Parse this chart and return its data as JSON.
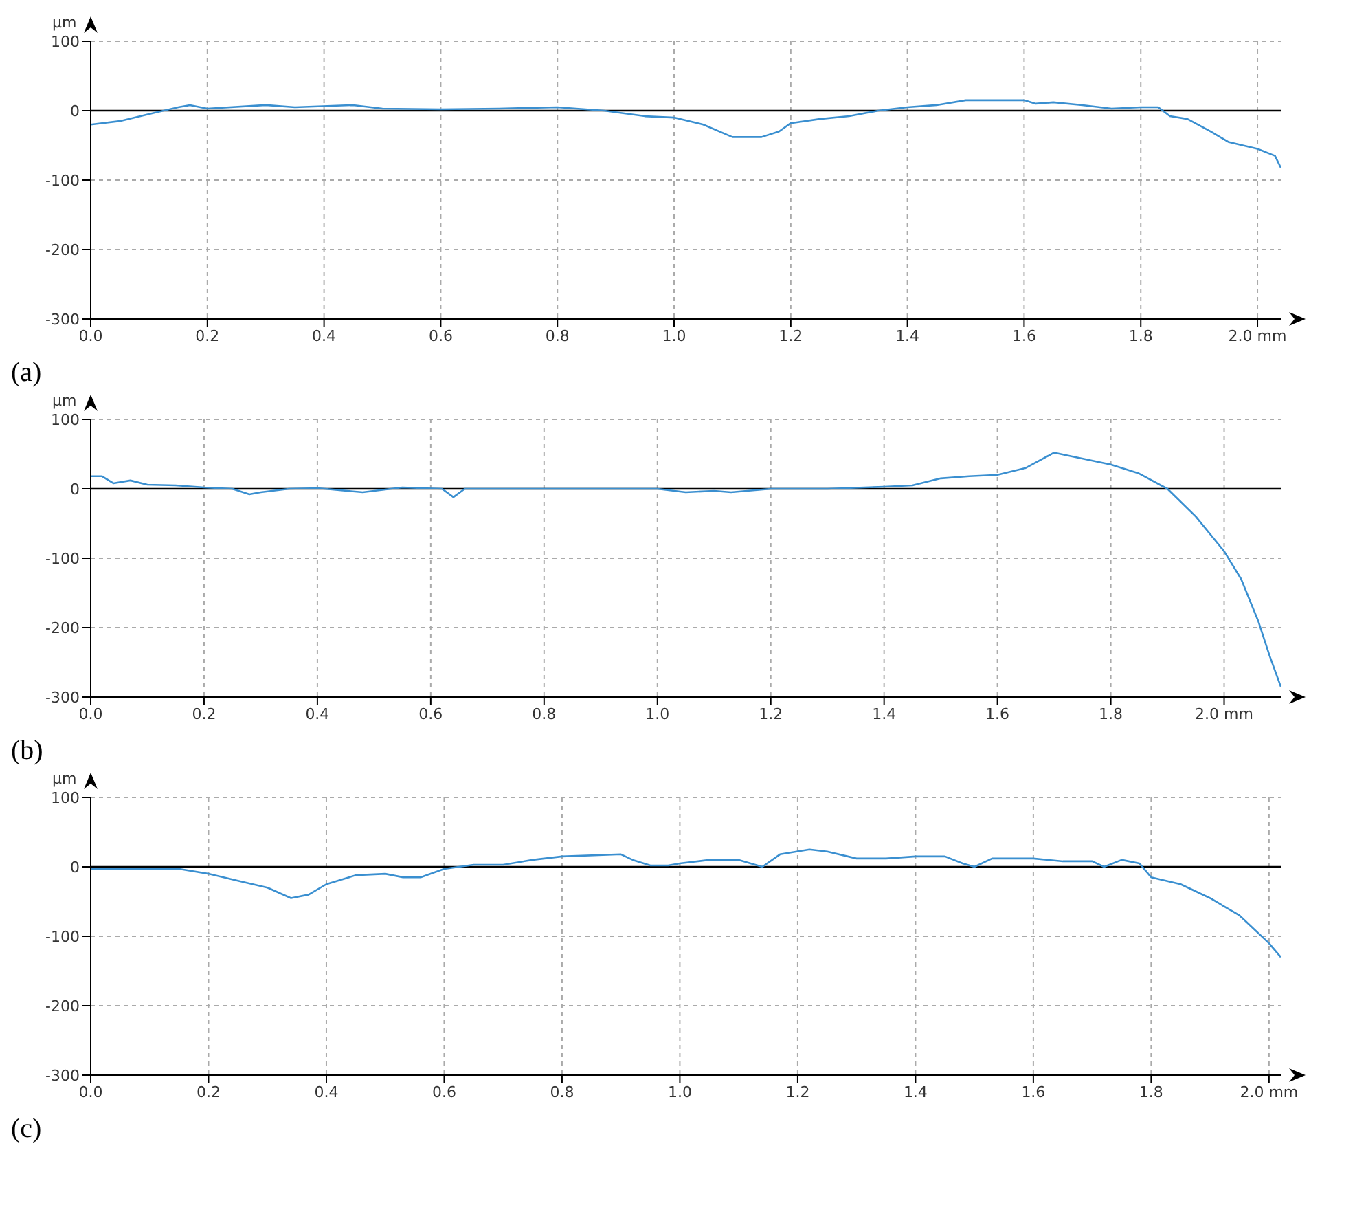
{
  "chart_data": [
    {
      "type": "line",
      "ylabel": "µm",
      "annotations": [
        "(a)"
      ],
      "xlim": [
        0,
        2.04
      ],
      "ylim": [
        -300,
        100
      ],
      "xticks": [
        {
          "value": 0,
          "label": "0.0"
        },
        {
          "value": 0.2,
          "label": "0.2"
        },
        {
          "value": 0.4,
          "label": "0.4"
        },
        {
          "value": 0.6,
          "label": "0.6"
        },
        {
          "value": 0.8,
          "label": "0.8"
        },
        {
          "value": 1,
          "label": "1.0"
        },
        {
          "value": 1.2,
          "label": "1.2"
        },
        {
          "value": 1.4,
          "label": "1.4"
        },
        {
          "value": 1.6,
          "label": "1.6"
        },
        {
          "value": 1.8,
          "label": "1.8"
        },
        {
          "value": 2,
          "label": "2.0 mm"
        }
      ],
      "yticks": [
        100,
        0,
        -100,
        -200,
        -300
      ],
      "grid": true,
      "ref_lines": [
        {
          "axis": "y",
          "value": 0,
          "color": "#000000"
        }
      ],
      "series": [
        {
          "color": "#3a8fd0",
          "x": [
            0,
            0.05,
            0.1,
            0.15,
            0.17,
            0.2,
            0.3,
            0.35,
            0.45,
            0.5,
            0.6,
            0.7,
            0.8,
            0.88,
            0.95,
            1.0,
            1.05,
            1.1,
            1.15,
            1.18,
            1.2,
            1.25,
            1.3,
            1.35,
            1.4,
            1.45,
            1.5,
            1.6,
            1.62,
            1.65,
            1.7,
            1.75,
            1.8,
            1.83,
            1.85,
            1.88,
            1.92,
            1.95,
            2.0,
            2.03,
            2.04
          ],
          "values": [
            -20,
            -15,
            -5,
            5,
            8,
            3,
            8,
            5,
            8,
            3,
            2,
            3,
            5,
            0,
            -8,
            -10,
            -20,
            -38,
            -38,
            -30,
            -18,
            -12,
            -8,
            0,
            5,
            8,
            15,
            15,
            10,
            12,
            8,
            3,
            5,
            5,
            -8,
            -12,
            -30,
            -45,
            -55,
            -65,
            -82
          ]
        }
      ]
    },
    {
      "type": "line",
      "ylabel": "µm",
      "annotations": [
        "(b)"
      ],
      "xlim": [
        0,
        2.1
      ],
      "ylim": [
        -300,
        100
      ],
      "xticks": [
        {
          "value": 0,
          "label": "0.0"
        },
        {
          "value": 0.2,
          "label": "0.2"
        },
        {
          "value": 0.4,
          "label": "0.4"
        },
        {
          "value": 0.6,
          "label": "0.6"
        },
        {
          "value": 0.8,
          "label": "0.8"
        },
        {
          "value": 1,
          "label": "1.0"
        },
        {
          "value": 1.2,
          "label": "1.2"
        },
        {
          "value": 1.4,
          "label": "1.4"
        },
        {
          "value": 1.6,
          "label": "1.6"
        },
        {
          "value": 1.8,
          "label": "1.8"
        },
        {
          "value": 2,
          "label": "2.0 mm"
        }
      ],
      "yticks": [
        100,
        0,
        -100,
        -200,
        -300
      ],
      "grid": true,
      "ref_lines": [
        {
          "axis": "y",
          "value": 0,
          "color": "#000000"
        }
      ],
      "series": [
        {
          "color": "#3a8fd0",
          "x": [
            0,
            0.02,
            0.04,
            0.07,
            0.1,
            0.15,
            0.2,
            0.25,
            0.28,
            0.3,
            0.35,
            0.4,
            0.48,
            0.55,
            0.62,
            0.64,
            0.66,
            0.8,
            1.0,
            1.05,
            1.1,
            1.13,
            1.2,
            1.3,
            1.4,
            1.45,
            1.5,
            1.55,
            1.6,
            1.65,
            1.7,
            1.8,
            1.85,
            1.9,
            1.95,
            2.0,
            2.03,
            2.06,
            2.08,
            2.1
          ],
          "values": [
            18,
            18,
            8,
            12,
            6,
            5,
            2,
            0,
            -8,
            -5,
            0,
            1,
            -5,
            2,
            0,
            -12,
            0,
            0,
            0,
            -5,
            -3,
            -5,
            0,
            0,
            3,
            5,
            15,
            18,
            20,
            30,
            52,
            35,
            22,
            0,
            -40,
            -90,
            -130,
            -190,
            -240,
            -285
          ]
        }
      ]
    },
    {
      "type": "line",
      "ylabel": "µm",
      "annotations": [
        "(c)"
      ],
      "xlim": [
        0,
        2.02
      ],
      "ylim": [
        -300,
        100
      ],
      "xticks": [
        {
          "value": 0,
          "label": "0.0"
        },
        {
          "value": 0.2,
          "label": "0.2"
        },
        {
          "value": 0.4,
          "label": "0.4"
        },
        {
          "value": 0.6,
          "label": "0.6"
        },
        {
          "value": 0.8,
          "label": "0.8"
        },
        {
          "value": 1,
          "label": "1.0"
        },
        {
          "value": 1.2,
          "label": "1.2"
        },
        {
          "value": 1.4,
          "label": "1.4"
        },
        {
          "value": 1.6,
          "label": "1.6"
        },
        {
          "value": 1.8,
          "label": "1.8"
        },
        {
          "value": 2,
          "label": "2.0 mm"
        }
      ],
      "yticks": [
        100,
        0,
        -100,
        -200,
        -300
      ],
      "grid": true,
      "ref_lines": [
        {
          "axis": "y",
          "value": 0,
          "color": "#000000"
        }
      ],
      "series": [
        {
          "color": "#3a8fd0",
          "x": [
            0,
            0.05,
            0.15,
            0.2,
            0.25,
            0.3,
            0.34,
            0.37,
            0.4,
            0.45,
            0.5,
            0.53,
            0.56,
            0.6,
            0.65,
            0.7,
            0.75,
            0.8,
            0.9,
            0.92,
            0.95,
            0.98,
            1.0,
            1.05,
            1.1,
            1.14,
            1.17,
            1.22,
            1.25,
            1.3,
            1.35,
            1.4,
            1.45,
            1.48,
            1.5,
            1.53,
            1.6,
            1.65,
            1.7,
            1.72,
            1.75,
            1.78,
            1.8,
            1.85,
            1.9,
            1.95,
            2.0,
            2.02
          ],
          "values": [
            -3,
            -3,
            -3,
            -10,
            -20,
            -30,
            -45,
            -40,
            -25,
            -12,
            -10,
            -15,
            -15,
            -3,
            3,
            3,
            10,
            15,
            18,
            10,
            2,
            2,
            5,
            10,
            10,
            0,
            18,
            25,
            22,
            12,
            12,
            15,
            15,
            5,
            0,
            12,
            12,
            8,
            8,
            0,
            10,
            5,
            -15,
            -25,
            -45,
            -70,
            -110,
            -130
          ]
        }
      ]
    }
  ]
}
